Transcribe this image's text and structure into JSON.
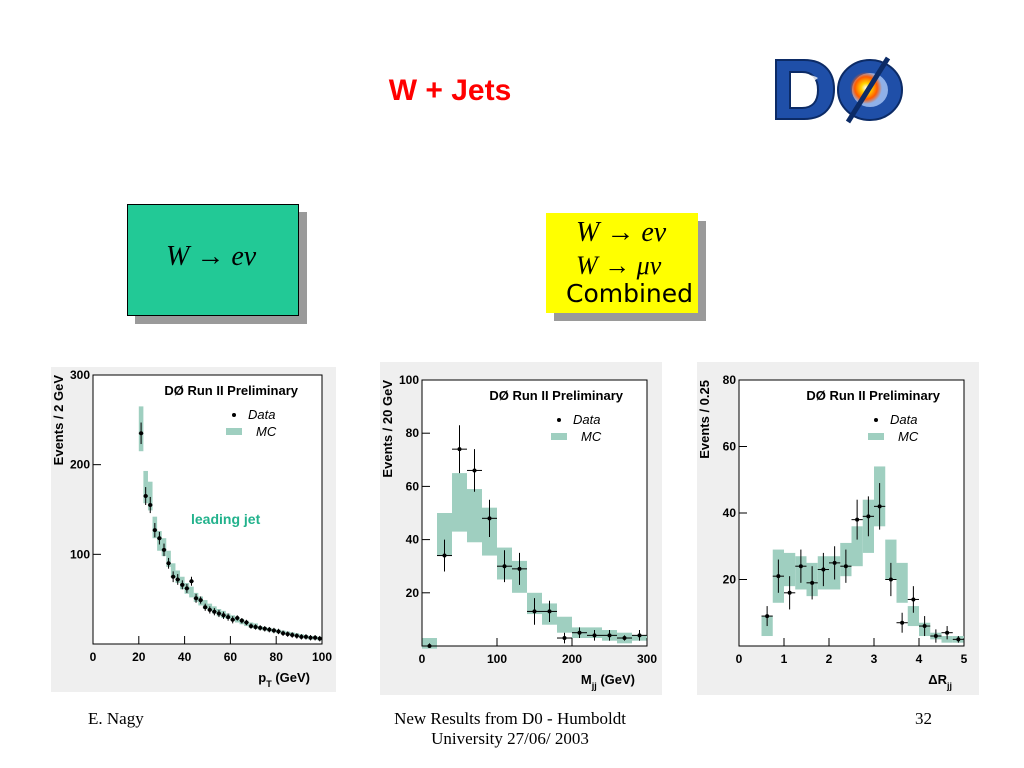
{
  "title": "W + Jets",
  "logo_text": "DØ",
  "box_green": {
    "label": "W → eν",
    "color": "#22c996"
  },
  "box_yellow": {
    "line1": "W → eν",
    "line2": "W → μν",
    "line3": "Combined",
    "color": "#ffff00"
  },
  "footer": {
    "author": "E. Nagy",
    "center_line1": "New Results from D0 - Humboldt",
    "center_line2": "University  27/06/ 2003",
    "page": "32"
  },
  "chart_data": [
    {
      "type": "scatter",
      "title": "DØ Run II Preliminary",
      "ylabel": "Events / 2 GeV",
      "xlabel": "p",
      "xlabel_sub": "T",
      "xlabel_unit": "(GeV)",
      "annotation": "leading jet",
      "xlim": [
        0,
        100
      ],
      "ylim": [
        0,
        300
      ],
      "xticks": [
        0,
        20,
        40,
        60,
        80,
        100
      ],
      "yticks": [
        100,
        200,
        300
      ],
      "legend": [
        "Data",
        "MC"
      ],
      "series": [
        {
          "name": "Data",
          "x": [
            21,
            23,
            25,
            27,
            29,
            31,
            33,
            35,
            37,
            39,
            41,
            43,
            45,
            47,
            49,
            51,
            53,
            55,
            57,
            59,
            61,
            63,
            65,
            67,
            69,
            71,
            73,
            75,
            77,
            79,
            81,
            83,
            85,
            87,
            89,
            91,
            93,
            95,
            97,
            99
          ],
          "y": [
            235,
            165,
            155,
            127,
            118,
            105,
            90,
            75,
            72,
            66,
            62,
            70,
            51,
            49,
            41,
            38,
            36,
            34,
            32,
            30,
            27,
            29,
            26,
            24,
            20,
            19,
            18,
            17,
            16,
            15,
            14,
            12,
            11,
            10,
            9,
            8,
            8,
            7,
            7,
            6
          ]
        },
        {
          "name": "MC",
          "x": [
            21,
            23,
            25,
            27,
            29,
            31,
            33,
            35,
            37,
            39,
            41,
            43,
            45,
            47,
            49,
            51,
            53,
            55,
            57,
            59,
            61,
            63,
            65,
            67,
            69,
            71,
            73,
            75,
            77,
            79,
            81,
            83,
            85,
            87,
            89,
            91,
            93,
            95,
            97,
            99
          ],
          "y": [
            240,
            175,
            165,
            130,
            115,
            108,
            95,
            82,
            75,
            68,
            62,
            58,
            52,
            48,
            44,
            41,
            38,
            35,
            33,
            31,
            29,
            27,
            25,
            23,
            21,
            20,
            18,
            17,
            16,
            15,
            14,
            13,
            12,
            11,
            10,
            9,
            8,
            7,
            7,
            6
          ],
          "err": [
            25,
            18,
            16,
            12,
            11,
            10,
            9,
            8,
            7,
            7,
            6,
            6,
            5,
            5,
            5,
            4,
            4,
            4,
            4,
            3,
            3,
            3,
            3,
            3,
            3,
            3,
            2,
            2,
            2,
            2,
            2,
            2,
            2,
            2,
            2,
            2,
            2,
            2,
            2,
            2
          ]
        }
      ],
      "data_err": [
        12,
        10,
        9,
        8,
        7,
        7,
        6,
        6,
        6,
        5,
        5,
        5,
        5,
        4,
        4,
        4,
        4,
        4,
        4,
        4,
        4,
        3,
        3,
        3,
        3,
        3,
        3,
        3,
        3,
        3,
        3,
        3,
        3,
        3,
        3,
        3,
        3,
        3,
        3,
        3
      ],
      "legend_placement": "top-right"
    },
    {
      "type": "scatter",
      "title": "DØ Run II Preliminary",
      "ylabel": "Events / 20 GeV",
      "xlabel": "M",
      "xlabel_sub": "jj",
      "xlabel_unit": "(GeV)",
      "xlim": [
        0,
        300
      ],
      "ylim": [
        0,
        100
      ],
      "xticks": [
        0,
        100,
        200,
        300
      ],
      "yticks": [
        20,
        40,
        60,
        80,
        100
      ],
      "legend": [
        "Data",
        "MC"
      ],
      "series": [
        {
          "name": "Data",
          "x": [
            10,
            30,
            50,
            70,
            90,
            110,
            130,
            150,
            170,
            190,
            210,
            230,
            250,
            270,
            290
          ],
          "y": [
            0,
            34,
            74,
            66,
            48,
            30,
            29,
            13,
            13,
            3,
            5,
            4,
            4,
            3,
            4
          ]
        },
        {
          "name": "MC",
          "x": [
            10,
            30,
            50,
            70,
            90,
            110,
            130,
            150,
            170,
            190,
            210,
            230,
            250,
            270,
            290
          ],
          "y": [
            1,
            42,
            54,
            49,
            43,
            31,
            26,
            16,
            12,
            8,
            5,
            5,
            4,
            3,
            3
          ],
          "err": [
            2,
            8,
            11,
            10,
            9,
            6,
            6,
            4,
            4,
            3,
            2,
            2,
            2,
            2,
            1
          ]
        }
      ],
      "data_err": [
        1,
        6,
        9,
        8,
        7,
        6,
        6,
        5,
        4,
        2,
        2,
        2,
        2,
        1,
        2
      ],
      "legend_placement": "top-right"
    },
    {
      "type": "scatter",
      "title": "DØ Run II Preliminary",
      "ylabel": "Events / 0.25",
      "xlabel": "ΔR",
      "xlabel_sub": "jj",
      "xlabel_unit": "",
      "xlim": [
        0,
        5
      ],
      "ylim": [
        0,
        80
      ],
      "xticks": [
        0,
        1,
        2,
        3,
        4,
        5
      ],
      "yticks": [
        20,
        40,
        60,
        80
      ],
      "legend": [
        "Data",
        "MC"
      ],
      "series": [
        {
          "name": "Data",
          "x": [
            0.625,
            0.875,
            1.125,
            1.375,
            1.625,
            1.875,
            2.125,
            2.375,
            2.625,
            2.875,
            3.125,
            3.375,
            3.625,
            3.875,
            4.125,
            4.375,
            4.625,
            4.875
          ],
          "y": [
            9,
            21,
            16,
            24,
            19,
            23,
            25,
            24,
            38,
            39,
            42,
            20,
            7,
            14,
            6,
            3,
            4,
            2
          ]
        },
        {
          "name": "MC",
          "x": [
            0.625,
            0.875,
            1.125,
            1.375,
            1.625,
            1.875,
            2.125,
            2.375,
            2.625,
            2.875,
            3.125,
            3.375,
            3.625,
            3.875,
            4.125,
            4.375,
            4.625,
            4.875
          ],
          "y": [
            6,
            21,
            23,
            22,
            20,
            22,
            22,
            26,
            30,
            36,
            45,
            26,
            19,
            9,
            5,
            3,
            2,
            2
          ],
          "err": [
            3,
            8,
            5,
            5,
            5,
            5,
            5,
            5,
            6,
            8,
            9,
            6,
            6,
            3,
            2,
            1,
            1,
            1
          ]
        }
      ],
      "data_err": [
        3,
        5,
        5,
        5,
        5,
        5,
        5,
        5,
        6,
        6,
        7,
        5,
        3,
        4,
        3,
        2,
        2,
        1
      ],
      "legend_placement": "top-right"
    }
  ]
}
